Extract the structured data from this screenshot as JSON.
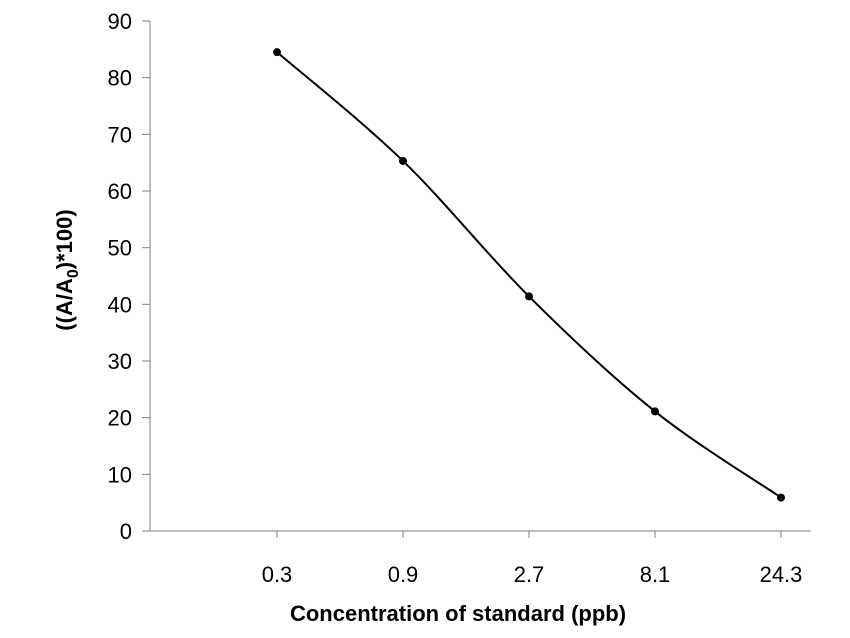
{
  "chart_data": {
    "type": "line",
    "title": "",
    "xlabel": "Concentration of standard (ppb)",
    "ylabel": {
      "prefix": "((A/A",
      "subscript": "0",
      "suffix": ")*100)"
    },
    "categories": [
      "0.3",
      "0.9",
      "2.7",
      "8.1",
      "24.3"
    ],
    "series": [
      {
        "values": [
          84.5,
          65.3,
          41.4,
          21.1,
          5.9
        ]
      }
    ],
    "ylim": [
      0,
      90
    ],
    "yticks": [
      0,
      10,
      20,
      30,
      40,
      50,
      60,
      70,
      80,
      90
    ],
    "grid": false,
    "legend": "none",
    "colors": {
      "line": "#000000",
      "marker": "#000000",
      "axis": "#808080"
    }
  }
}
